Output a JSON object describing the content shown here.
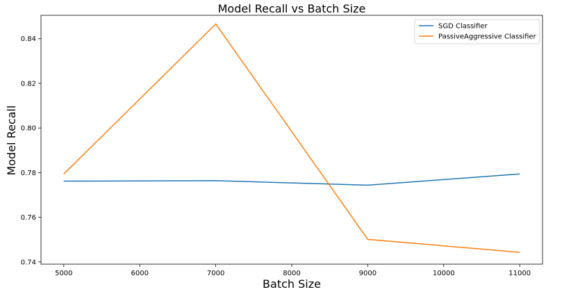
{
  "chart_data": {
    "type": "line",
    "title": "Model Recall vs Batch Size",
    "xlabel": "Batch Size",
    "ylabel": "Model Recall",
    "x": [
      5000,
      7000,
      9000,
      11000
    ],
    "xticks": [
      "5000",
      "6000",
      "7000",
      "8000",
      "9000",
      "10000",
      "11000"
    ],
    "yticks": [
      "0.74",
      "0.76",
      "0.78",
      "0.80",
      "0.82",
      "0.84"
    ],
    "xlim": [
      4700,
      11300
    ],
    "ylim": [
      0.739,
      0.8505
    ],
    "grid": false,
    "legend_position": "top-right",
    "series": [
      {
        "name": "SGD Classifier",
        "color": "#1f77b4",
        "values": [
          0.7762,
          0.7764,
          0.7744,
          0.7794
        ]
      },
      {
        "name": "PassiveAggressive Classifier",
        "color": "#ff7f0e",
        "values": [
          0.7794,
          0.8466,
          0.7501,
          0.7443
        ]
      }
    ]
  }
}
